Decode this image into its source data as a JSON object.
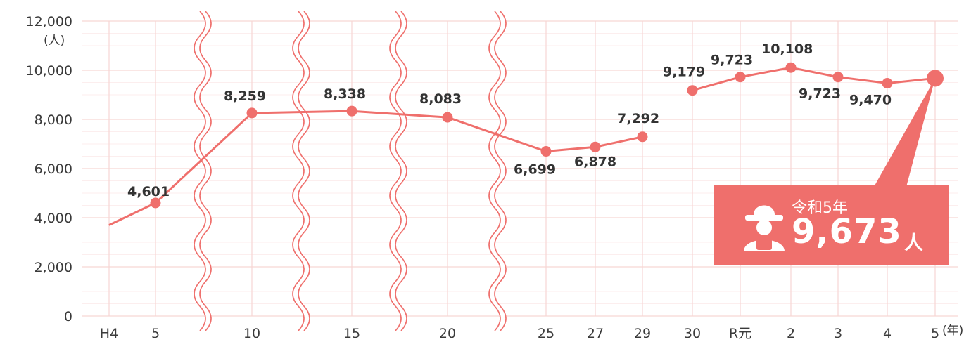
{
  "colors": {
    "line": "#ef6f6c",
    "grid": "#f7d6d4",
    "text": "#333333"
  },
  "chart_data": {
    "type": "line",
    "y_unit": "(人)",
    "x_unit": "(年)",
    "ylim": [
      0,
      12000
    ],
    "y_ticks": [
      "12,000",
      "10,000",
      "8,000",
      "6,000",
      "4,000",
      "2,000",
      "0"
    ],
    "x_tick_labels": [
      "H4",
      "5",
      "10",
      "15",
      "20",
      "25",
      "27",
      "29",
      "30",
      "R元",
      "2",
      "3",
      "4",
      "5"
    ],
    "series": [
      {
        "points": [
          {
            "x": "H4",
            "y": 3700
          },
          {
            "x": "5",
            "y": 4601,
            "label": "4,601"
          },
          {
            "x": "10",
            "y": 8259,
            "label": "8,259"
          },
          {
            "x": "15",
            "y": 8338,
            "label": "8,338"
          },
          {
            "x": "20",
            "y": 8083,
            "label": "8,083"
          },
          {
            "x": "25",
            "y": 6699,
            "label": "6,699"
          },
          {
            "x": "27",
            "y": 6878,
            "label": "6,878"
          },
          {
            "x": "29",
            "y": 7292,
            "label": "7,292"
          },
          {
            "x": "30",
            "y": 9179,
            "label": "9,179"
          },
          {
            "x": "R元",
            "y": 9723,
            "label": "9,723"
          },
          {
            "x": "2",
            "y": 10108,
            "label": "10,108"
          },
          {
            "x": "3",
            "y": 9723,
            "label": "9,723"
          },
          {
            "x": "4",
            "y": 9470,
            "label": "9,470"
          },
          {
            "x": "5",
            "y": 9673
          }
        ]
      }
    ],
    "callout": {
      "year_label": "令和5年",
      "value": "9,673",
      "unit": "人"
    }
  }
}
